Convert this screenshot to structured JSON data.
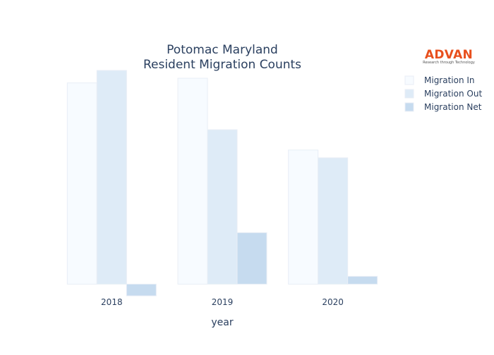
{
  "logo": {
    "name": "ADVAN",
    "tagline": "Research through Technology",
    "color": "#e8501e"
  },
  "chart_data": {
    "type": "bar",
    "title_lines": [
      "Potomac Maryland",
      "Resident Migration Counts"
    ],
    "xlabel": "year",
    "ylabel": "",
    "categories": [
      "2018",
      "2019",
      "2020"
    ],
    "series": [
      {
        "name": "Migration In",
        "values": [
          2580,
          2640,
          1720
        ],
        "color": "#f7fbff"
      },
      {
        "name": "Migration Out",
        "values": [
          2740,
          1980,
          1620
        ],
        "color": "#deebf7"
      },
      {
        "name": "Migration Net",
        "values": [
          -150,
          660,
          100
        ],
        "color": "#c6dbef"
      }
    ],
    "ylim": [
      -150,
      2740
    ],
    "y_gridlines": false,
    "y_tick_labels": false,
    "legend_position": "top-right"
  }
}
